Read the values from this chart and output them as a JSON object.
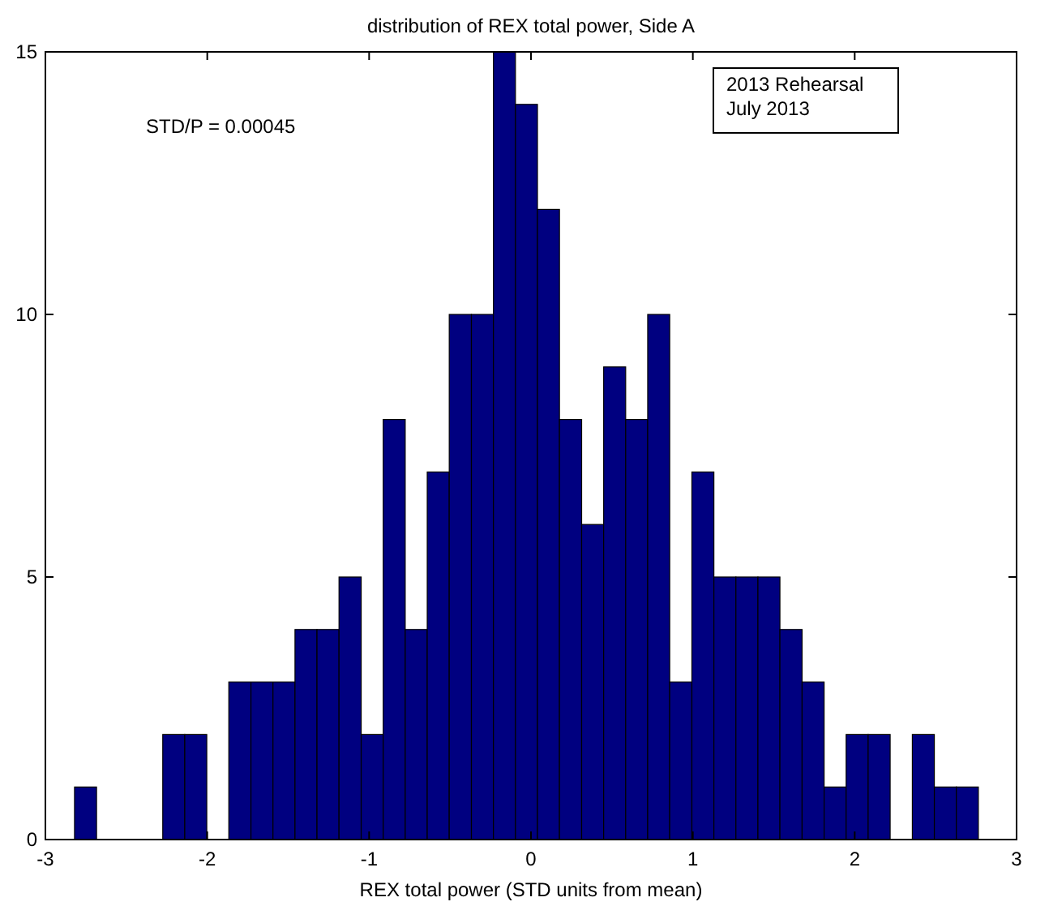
{
  "chart_data": {
    "type": "histogram",
    "title": "distribution of REX total power, Side A",
    "xlabel": "REX total power (STD units from mean)",
    "bins": [
      -2.82,
      -2.684,
      -2.548,
      -2.411,
      -2.275,
      -2.139,
      -2.003,
      -1.867,
      -1.73,
      -1.594,
      -1.458,
      -1.322,
      -1.186,
      -1.049,
      -0.913,
      -0.777,
      -0.641,
      -0.505,
      -0.368,
      -0.232,
      -0.096,
      0.04,
      0.176,
      0.313,
      0.449,
      0.585,
      0.721,
      0.857,
      0.994,
      1.13,
      1.266,
      1.402,
      1.538,
      1.675,
      1.811,
      1.947,
      2.083,
      2.219,
      2.356,
      2.492,
      2.628,
      2.764
    ],
    "values": [
      1,
      0,
      0,
      0,
      2,
      2,
      0,
      3,
      3,
      3,
      4,
      4,
      5,
      2,
      8,
      4,
      7,
      10,
      10,
      15,
      14,
      12,
      8,
      6,
      9,
      8,
      10,
      3,
      7,
      5,
      5,
      5,
      4,
      3,
      1,
      2,
      2,
      0,
      2,
      1,
      1
    ],
    "color": "#000080",
    "xlim": [
      -3,
      3
    ],
    "xticks": [
      -3,
      -2,
      -1,
      0,
      1,
      2,
      3
    ],
    "ylim": [
      0,
      15
    ],
    "yticks": [
      0,
      5,
      10,
      15
    ],
    "annotations": [
      "STD/P = 0.00045",
      "2013 Rehearsal\nJuly 2013"
    ]
  }
}
